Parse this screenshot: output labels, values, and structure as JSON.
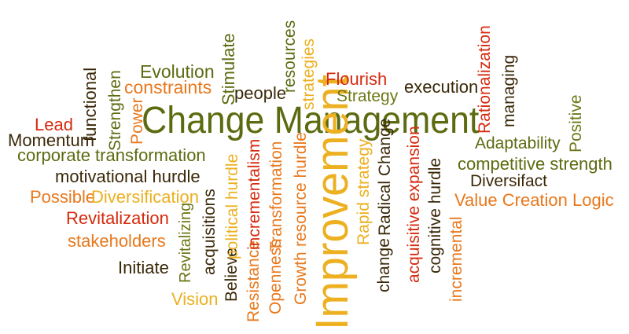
{
  "cloud": {
    "headline": "Change Management",
    "improvement": "Improvement",
    "words": {
      "evolution": "Evolution",
      "stimulate": "Stimulate",
      "resources": "resources",
      "strategies": "strategies",
      "rationalization": "Rationalization",
      "managing": "managing",
      "functional": "functional",
      "strengthen": "Strengthen",
      "constraints": "constraints",
      "people": "people",
      "flourish": "Flourish",
      "execution": "execution",
      "strategy": "Strategy",
      "power": "Power",
      "lead": "Lead",
      "momentum": "Momentum",
      "positive": "Positive",
      "adaptability": "Adaptability",
      "corporate_transformation": "corporate transformation",
      "diversifact": "Diversifact",
      "competitive_strength": "competitive strength",
      "motivational_hurdle": "motivational hurdle",
      "possible": "Possible",
      "diversification": "Diversification",
      "value_creation_logic": "Value Creation Logic",
      "revitalization": "Revitalization",
      "stakeholders": "stakeholders",
      "initiate": "Initiate",
      "vision": "Vision",
      "revitalizing": "Revitalizing",
      "acquisitions": "acquisitions",
      "believe": "Believe",
      "political_hurdle": "political hurdle",
      "resistance": "Resistance",
      "incrementalism": "incrementalism",
      "openness": "Openness",
      "transformation": "Transformation",
      "growth": "Growth",
      "resource_hurdle": "resource hurdle",
      "rapid_strategy": "Rapid strategy",
      "change": "change",
      "radical_change": "Radical Change",
      "acquisitive_expansion": "acquisitive expansion",
      "cognitive_hurdle": "cognitive hurdle",
      "incremental": "incremental"
    },
    "colors": {
      "olive": "#5c6b10",
      "dark_brown": "#3a2808",
      "red": "#d62a0e",
      "orange": "#e8781c",
      "gold": "#ecb020",
      "dark_red": "#a01e0e",
      "olive_light": "#6e7816"
    }
  }
}
